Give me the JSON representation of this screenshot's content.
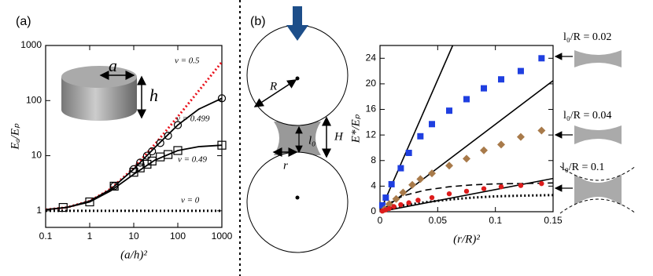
{
  "chart_data": [
    {
      "type": "line",
      "panel_label": "(a)",
      "xlabel": "(a/h)²",
      "ylabel": "Eₐ/Eₚ",
      "log_x": true,
      "log_y": true,
      "xlim": [
        0.1,
        1000
      ],
      "ylim": [
        0.5,
        1000
      ],
      "xticks": [
        0.1,
        1,
        10,
        100,
        1000
      ],
      "yticks": [
        1,
        10,
        100,
        1000
      ],
      "inset_labels": [
        "a",
        "h"
      ],
      "series": [
        {
          "name": "ν = 0.5",
          "color": "#e8101a",
          "style": "dotted",
          "x": [
            0.1,
            0.3,
            1,
            3,
            10,
            30,
            100,
            300,
            1000
          ],
          "values": [
            1.05,
            1.15,
            1.5,
            2.5,
            6,
            16,
            51,
            151,
            501
          ]
        },
        {
          "name": "ν = 0.499",
          "color": "#000000",
          "style": "solid",
          "x": [
            0.1,
            0.3,
            1,
            3,
            10,
            30,
            100,
            300,
            1000
          ],
          "values": [
            1.05,
            1.15,
            1.5,
            2.45,
            5.7,
            14,
            36,
            70,
            110
          ]
        },
        {
          "name": "ν = 0.49",
          "color": "#000000",
          "style": "solid",
          "x": [
            0.1,
            0.3,
            1,
            3,
            10,
            30,
            100,
            300,
            1000
          ],
          "values": [
            1.05,
            1.15,
            1.45,
            2.3,
            4.6,
            8.3,
            12.4,
            14.6,
            15.5
          ]
        },
        {
          "name": "ν = 0",
          "color": "#000000",
          "style": "dotted",
          "x": [
            0.1,
            1000
          ],
          "values": [
            1,
            1
          ]
        }
      ],
      "markers": [
        {
          "marker": "open-circle",
          "color": "#000000",
          "x": [
            3.6,
            10,
            14,
            20,
            26,
            40,
            60,
            100,
            1000
          ],
          "values": [
            2.8,
            5.7,
            7.5,
            10,
            12,
            17,
            23,
            36,
            110
          ]
        },
        {
          "marker": "open-square",
          "color": "#000000",
          "x": [
            0.25,
            1,
            3.6,
            10,
            14,
            20,
            26,
            40,
            60,
            100,
            1000
          ],
          "values": [
            1.15,
            1.45,
            2.8,
            5,
            6,
            7,
            8,
            9.5,
            10.5,
            12.4,
            15.5
          ]
        }
      ]
    },
    {
      "type": "scatter",
      "panel_label": "(b)",
      "xlabel": "(r/R)²",
      "ylabel": "E*/Eₚ",
      "xlim": [
        0,
        0.15
      ],
      "ylim": [
        0,
        26
      ],
      "xticks": [
        0,
        0.05,
        0.1,
        0.15
      ],
      "yticks": [
        0,
        4,
        8,
        12,
        16,
        20,
        24
      ],
      "diagram_labels": [
        "R",
        "r",
        "l₀",
        "H"
      ],
      "series": [
        {
          "name": "l₀/R = 0.02",
          "color": "#1f3fe0",
          "marker": "square",
          "x": [
            0.002,
            0.005,
            0.01,
            0.018,
            0.025,
            0.035,
            0.045,
            0.06,
            0.075,
            0.09,
            0.105,
            0.122,
            0.14
          ],
          "values": [
            1,
            2.2,
            4.3,
            6.8,
            9.2,
            11.8,
            13.7,
            15.8,
            17.6,
            19.3,
            20.7,
            22,
            24
          ]
        },
        {
          "name": "l₀/R = 0.04",
          "color": "#a87a4a",
          "marker": "diamond",
          "x": [
            0.004,
            0.008,
            0.014,
            0.02,
            0.028,
            0.035,
            0.045,
            0.06,
            0.075,
            0.09,
            0.105,
            0.122,
            0.14
          ],
          "values": [
            0.4,
            1.2,
            2,
            3,
            4.2,
            5.1,
            6,
            7.2,
            8.3,
            9.6,
            10.5,
            11.7,
            12.7
          ]
        },
        {
          "name": "l₀/R = 0.1",
          "color": "#dd1c1c",
          "marker": "circle",
          "x": [
            0.002,
            0.005,
            0.008,
            0.012,
            0.018,
            0.025,
            0.033,
            0.045,
            0.06,
            0.075,
            0.09,
            0.105,
            0.122,
            0.14
          ],
          "values": [
            0.1,
            0.3,
            0.5,
            0.8,
            1.1,
            1.4,
            1.8,
            2.2,
            2.8,
            3.2,
            3.6,
            3.9,
            4.1,
            4.4
          ]
        }
      ],
      "fits": [
        {
          "style": "solid",
          "color": "#000000",
          "x": [
            0,
            0.063
          ],
          "values": [
            0,
            26
          ]
        },
        {
          "style": "solid",
          "color": "#000000",
          "x": [
            0,
            0.15
          ],
          "values": [
            0,
            20.5
          ]
        },
        {
          "style": "solid",
          "color": "#000000",
          "x": [
            0,
            0.15
          ],
          "values": [
            0,
            5.2
          ]
        },
        {
          "style": "dashed",
          "color": "#000000",
          "x": [
            0,
            0.01,
            0.02,
            0.04,
            0.06,
            0.08,
            0.1,
            0.12,
            0.15
          ],
          "values": [
            0,
            1.5,
            2.5,
            3.4,
            3.9,
            4.2,
            4.35,
            4.4,
            4.5
          ]
        },
        {
          "style": "dotted",
          "color": "#000000",
          "x": [
            0,
            0.01,
            0.02,
            0.04,
            0.06,
            0.08,
            0.1,
            0.12,
            0.15
          ],
          "values": [
            0,
            0.6,
            1.0,
            1.5,
            1.9,
            2.2,
            2.4,
            2.5,
            2.6
          ]
        }
      ]
    }
  ]
}
